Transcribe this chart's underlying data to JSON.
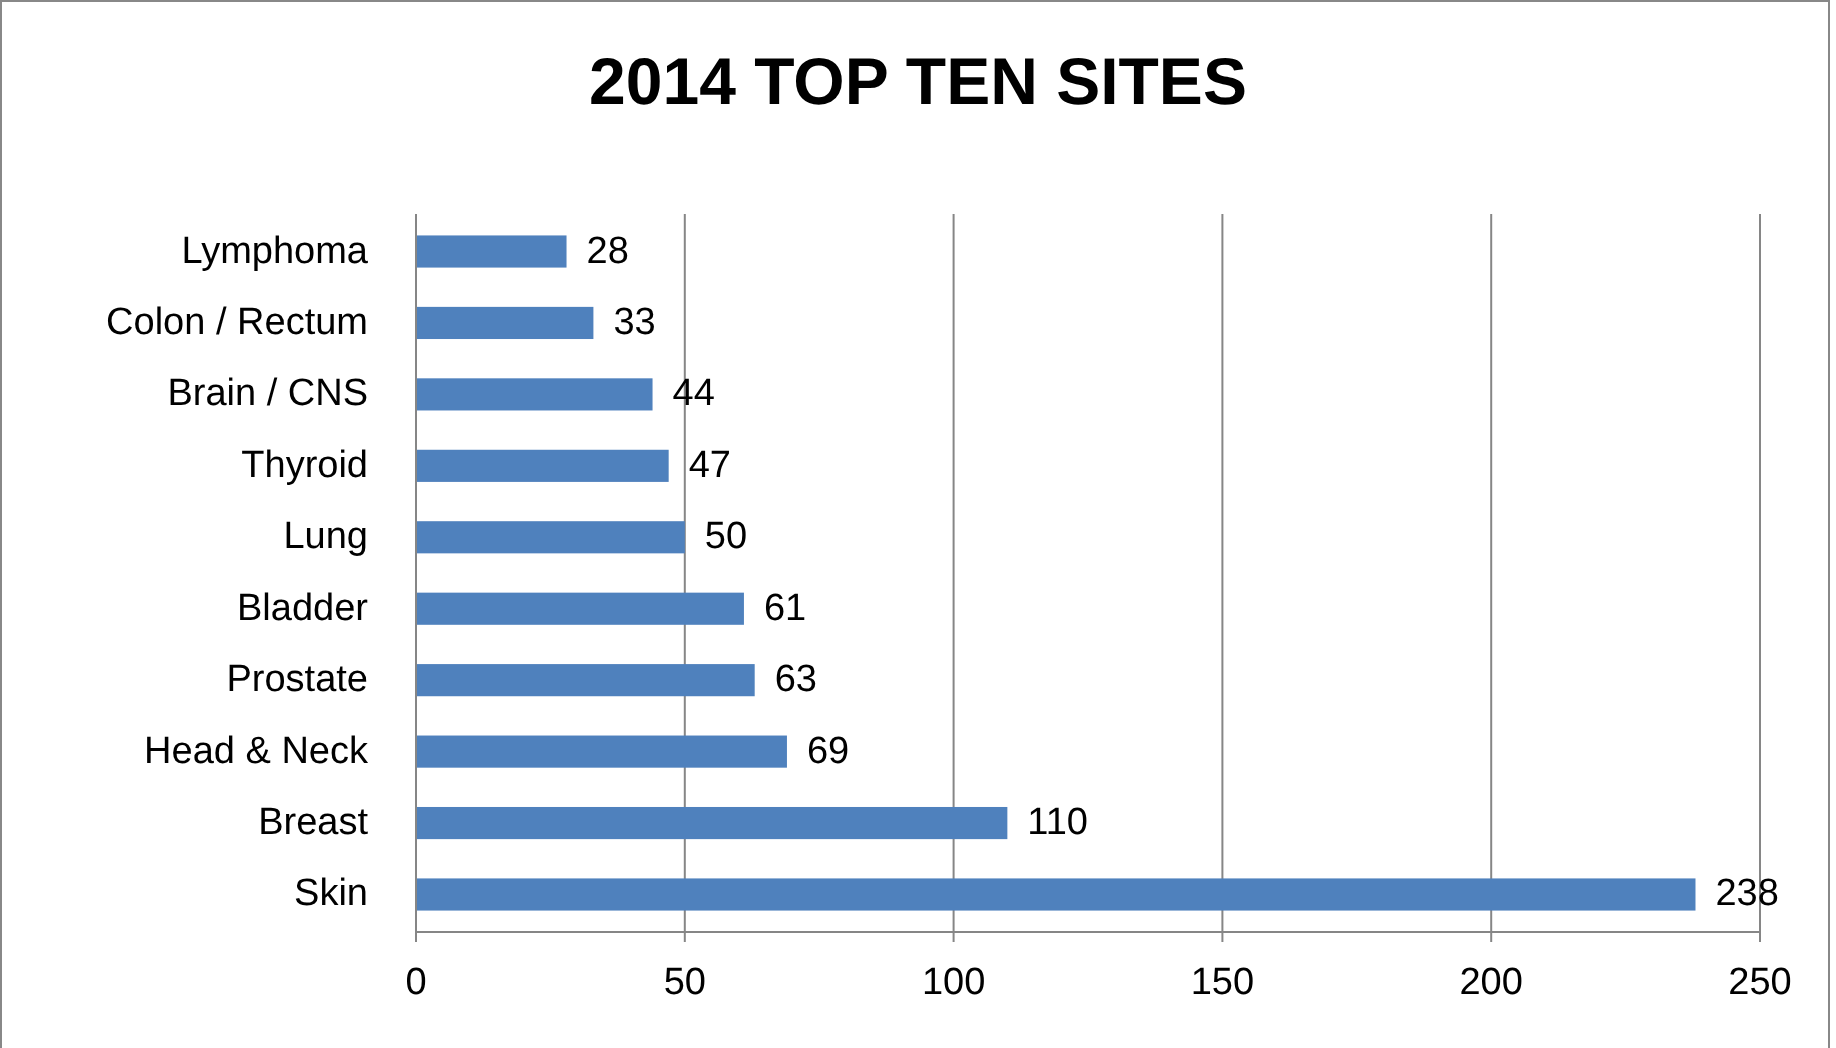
{
  "chart_data": {
    "type": "bar",
    "orientation": "horizontal",
    "title": "2014 TOP TEN SITES",
    "categories": [
      "Lymphoma",
      "Colon / Rectum",
      "Brain / CNS",
      "Thyroid",
      "Lung",
      "Bladder",
      "Prostate",
      "Head & Neck",
      "Breast",
      "Skin"
    ],
    "values": [
      28,
      33,
      44,
      47,
      50,
      61,
      63,
      69,
      110,
      238
    ],
    "color": "#4f81bd",
    "xlim": [
      0,
      250
    ],
    "xticks": [
      0,
      50,
      100,
      150,
      200,
      250
    ],
    "grid": "x",
    "data_labels": true
  }
}
